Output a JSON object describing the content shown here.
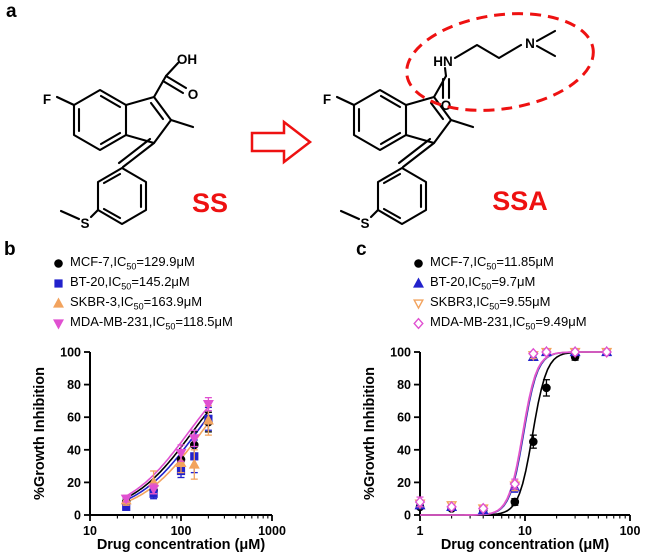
{
  "panels": {
    "a": {
      "label": "a",
      "ss": {
        "name": "SS"
      },
      "ssa": {
        "name": "SSA"
      },
      "atoms": {
        "oh": "OH",
        "o_acid": "O",
        "f_left": "F",
        "s_left": "S",
        "hn": "HN",
        "o_amide": "O",
        "n_amine": "N",
        "f_right": "F",
        "s_right": "S"
      }
    },
    "b": {
      "label": "b"
    },
    "c": {
      "label": "c"
    }
  },
  "colors": {
    "black": "#000000",
    "blue": "#2222cc",
    "orange": "#f2a35e",
    "magenta": "#e051d1",
    "accent_red": "#ee1111"
  },
  "chart_data": [
    {
      "id": "chart-b",
      "type": "scatter",
      "title": "",
      "xlabel": "Drug concentration (μM)",
      "ylabel": "%Growth Inhibition",
      "xscale": "log",
      "xlim": [
        10,
        1000
      ],
      "ylim": [
        0,
        100
      ],
      "xticks": [
        10,
        100,
        1000
      ],
      "yticks": [
        0,
        20,
        40,
        60,
        80,
        100
      ],
      "grid": false,
      "legend_position": "top-left",
      "hill_slope": 1.3,
      "series": [
        {
          "name": "MCF-7",
          "ic50_uM": 129.9,
          "color": "#000000",
          "marker": "circle",
          "open": false,
          "legend": {
            "pre": "MCF-7,IC",
            "sub": "50",
            "post": "=129.9μM"
          },
          "x": [
            25,
            50,
            100,
            140,
            200
          ],
          "y": [
            8,
            15,
            34,
            43,
            57
          ],
          "err": [
            2,
            3,
            5,
            8,
            6
          ]
        },
        {
          "name": "BT-20",
          "ic50_uM": 145.2,
          "color": "#2222cc",
          "marker": "square",
          "open": false,
          "legend": {
            "pre": "BT-20,IC",
            "sub": "50",
            "post": "=145.2μM"
          },
          "x": [
            25,
            50,
            100,
            140,
            200
          ],
          "y": [
            5,
            13,
            27,
            36,
            59
          ],
          "err": [
            2,
            3,
            4,
            10,
            7
          ]
        },
        {
          "name": "SKBR-3",
          "ic50_uM": 163.9,
          "color": "#f2a35e",
          "marker": "triangle-up",
          "open": false,
          "legend": {
            "pre": "SKBR-3,IC",
            "sub": "50",
            "post": "=163.9μM"
          },
          "x": [
            25,
            50,
            100,
            140,
            200
          ],
          "y": [
            9,
            20,
            32,
            31,
            58
          ],
          "err": [
            3,
            7,
            6,
            9,
            9
          ]
        },
        {
          "name": "MDA-MB-231",
          "ic50_uM": 118.5,
          "color": "#e051d1",
          "marker": "triangle-down",
          "open": false,
          "legend": {
            "pre": "MDA-MB-231,IC",
            "sub": "50",
            "post": "=118.5μM"
          },
          "x": [
            25,
            50,
            100,
            140,
            200
          ],
          "y": [
            10,
            16,
            38,
            47,
            68
          ],
          "err": [
            2,
            3,
            5,
            5,
            4
          ]
        }
      ]
    },
    {
      "id": "chart-c",
      "type": "scatter",
      "title": "",
      "xlabel": "Drug concentration (μM)",
      "ylabel": "%Growth Inhibition",
      "xscale": "log",
      "xlim": [
        1,
        100
      ],
      "ylim": [
        0,
        100
      ],
      "xticks": [
        1,
        10,
        100
      ],
      "yticks": [
        0,
        20,
        40,
        60,
        80,
        100
      ],
      "grid": false,
      "legend_position": "top-left",
      "hill_slope": 6.5,
      "series": [
        {
          "name": "MCF-7",
          "ic50_uM": 11.85,
          "color": "#000000",
          "marker": "circle",
          "open": false,
          "legend": {
            "pre": "MCF-7,IC",
            "sub": "50",
            "post": "=11.85μM"
          },
          "x": [
            1,
            2,
            4,
            8,
            12,
            16,
            30,
            60
          ],
          "y": [
            5,
            4,
            3,
            8,
            45,
            78,
            97,
            100
          ],
          "err": [
            1,
            1,
            1,
            2,
            4,
            5,
            2,
            0
          ]
        },
        {
          "name": "BT-20",
          "ic50_uM": 9.7,
          "color": "#2222cc",
          "marker": "triangle-up",
          "open": false,
          "legend": {
            "pre": "BT-20,IC",
            "sub": "50",
            "post": "=9.7μM"
          },
          "x": [
            1,
            2,
            4,
            8,
            12,
            16,
            30,
            60
          ],
          "y": [
            6,
            5,
            3,
            17,
            97,
            100,
            100,
            100
          ],
          "err": [
            1,
            1,
            1,
            3,
            2,
            0,
            0,
            0
          ]
        },
        {
          "name": "SKBR3",
          "ic50_uM": 9.55,
          "color": "#f2a35e",
          "marker": "triangle-down",
          "open": true,
          "legend": {
            "pre": "SKBR3,IC",
            "sub": "50",
            "post": "=9.55μM"
          },
          "x": [
            1,
            2,
            4,
            8,
            12,
            16,
            30,
            60
          ],
          "y": [
            7,
            6,
            4,
            18,
            98,
            100,
            100,
            100
          ],
          "err": [
            2,
            1,
            1,
            3,
            2,
            0,
            0,
            0
          ]
        },
        {
          "name": "MDA-MB-231",
          "ic50_uM": 9.49,
          "color": "#e051d1",
          "marker": "diamond",
          "open": true,
          "legend": {
            "pre": "MDA-MB-231,IC",
            "sub": "50",
            "post": "=9.49μM"
          },
          "x": [
            1,
            2,
            4,
            8,
            12,
            16,
            30,
            60
          ],
          "y": [
            8,
            5,
            4,
            19,
            99,
            100,
            100,
            100
          ],
          "err": [
            3,
            1,
            1,
            3,
            0,
            0,
            0,
            0
          ]
        }
      ]
    }
  ]
}
